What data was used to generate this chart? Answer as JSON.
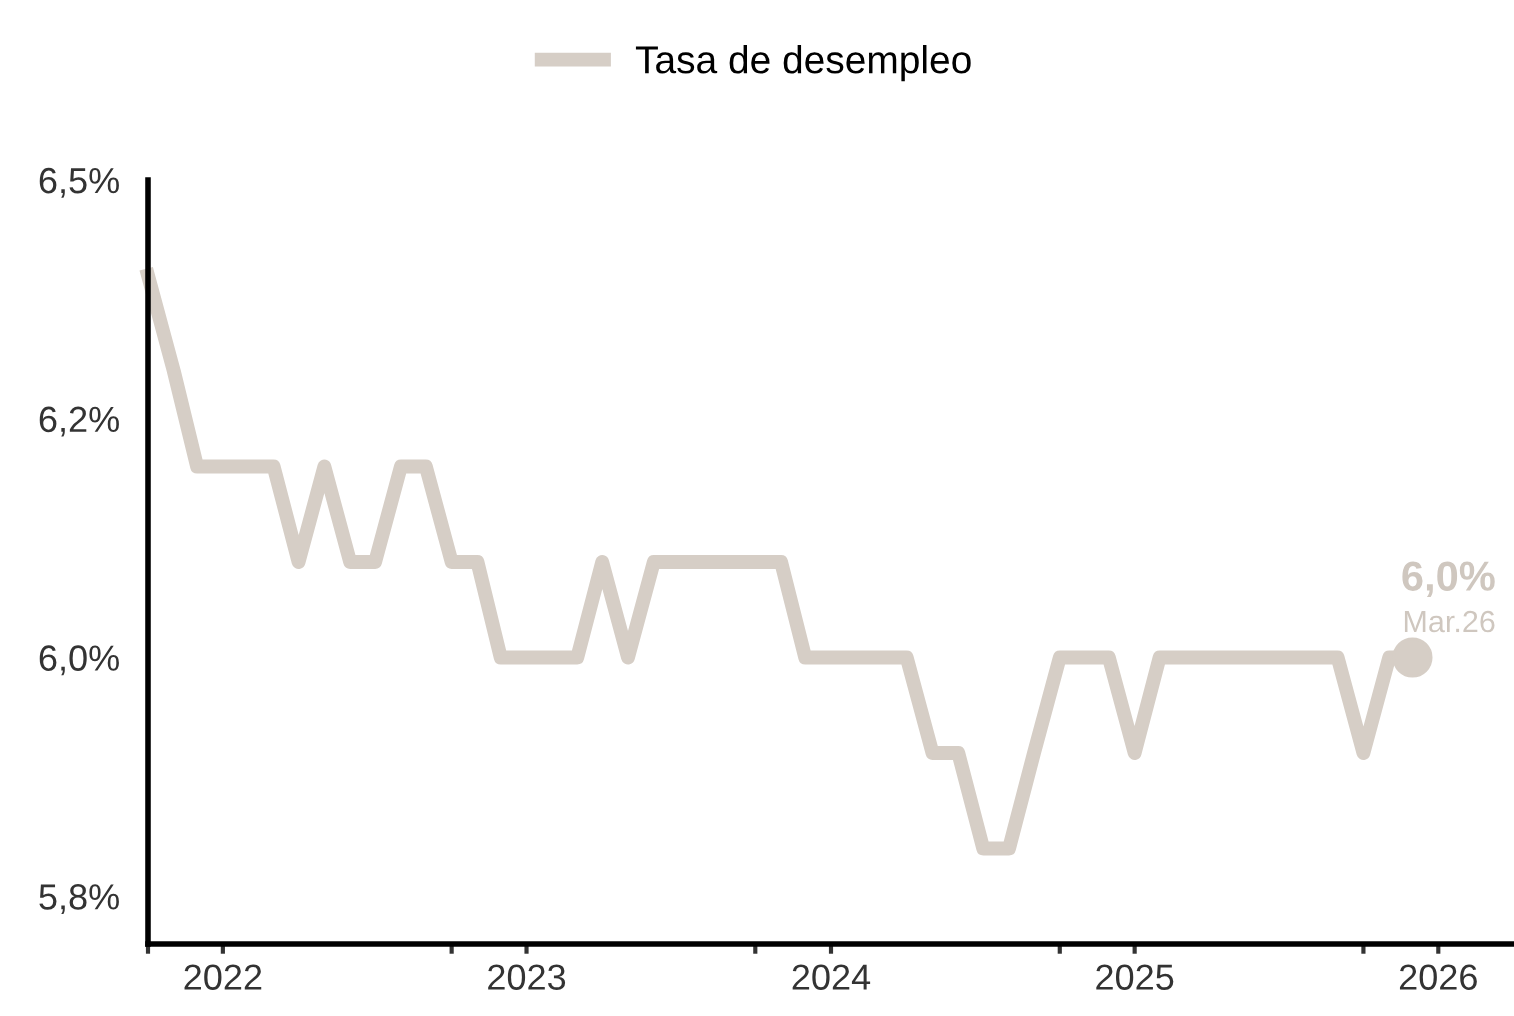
{
  "chart_data": {
    "type": "line",
    "legend": "top",
    "x": [
      "2022-01",
      "2022-02",
      "2022-03",
      "2022-04",
      "2022-05",
      "2022-06",
      "2022-07",
      "2022-08",
      "2022-09",
      "2022-10",
      "2022-11",
      "2022-12",
      "2023-01",
      "2023-02",
      "2023-03",
      "2023-04",
      "2023-05",
      "2023-06",
      "2023-07",
      "2023-08",
      "2023-09",
      "2023-10",
      "2023-11",
      "2023-12",
      "2024-01",
      "2024-02",
      "2024-03",
      "2024-04",
      "2024-05",
      "2024-06",
      "2024-07",
      "2024-08",
      "2024-09",
      "2024-10",
      "2024-11",
      "2024-12",
      "2025-01",
      "2025-02",
      "2025-03",
      "2025-04",
      "2025-05",
      "2025-06",
      "2025-07",
      "2025-08",
      "2025-09",
      "2025-10",
      "2025-11",
      "2025-12",
      "2026-01",
      "2026-02",
      "2026-03"
    ],
    "series": [
      {
        "name": "Tasa de desempleo",
        "color": "#d6cec6",
        "values": [
          6.4,
          6.3,
          6.2,
          6.2,
          6.2,
          6.2,
          6.1,
          6.2,
          6.1,
          6.1,
          6.2,
          6.2,
          6.1,
          6.1,
          6.0,
          6.0,
          6.0,
          6.0,
          6.1,
          6.0,
          6.1,
          6.1,
          6.1,
          6.1,
          6.1,
          6.1,
          6.0,
          6.0,
          6.0,
          6.0,
          6.0,
          5.9,
          5.9,
          5.8,
          5.8,
          5.9,
          6.0,
          6.0,
          6.0,
          5.9,
          6.0,
          6.0,
          6.0,
          6.0,
          6.0,
          6.0,
          6.0,
          6.0,
          5.9,
          6.0,
          6.0
        ]
      },
      {
        "type": "scatter",
        "color": "#d6cec6",
        "marker": "circle",
        "x": [
          "2026-03"
        ],
        "values": [
          6.0
        ]
      }
    ],
    "ylim": [
      5.7,
      6.5
    ],
    "yticks": [
      {
        "value": 5.75,
        "label": "5,8%"
      },
      {
        "value": 6.0,
        "label": "6,0%"
      },
      {
        "value": 6.25,
        "label": "6,2%"
      },
      {
        "value": 6.5,
        "label": "6,5%"
      }
    ],
    "xlim": [
      "2022-01",
      "2026-07"
    ],
    "xticks": [
      {
        "value": "2022-01",
        "label": null
      },
      {
        "value": "2022-04",
        "label": "2022"
      },
      {
        "value": "2023-01",
        "label": null
      },
      {
        "value": "2023-04",
        "label": "2023"
      },
      {
        "value": "2024-01",
        "label": null
      },
      {
        "value": "2024-04",
        "label": "2024"
      },
      {
        "value": "2025-01",
        "label": null
      },
      {
        "value": "2025-04",
        "label": "2025"
      },
      {
        "value": "2026-01",
        "label": null
      },
      {
        "value": "2026-04",
        "label": "2026"
      }
    ],
    "annotations": [
      {
        "text": "6,0%",
        "x": "2026-03",
        "y": 6.0
      },
      {
        "text": "Mar.26",
        "x": "2026-03",
        "y": 6.0
      }
    ],
    "grid": false
  }
}
